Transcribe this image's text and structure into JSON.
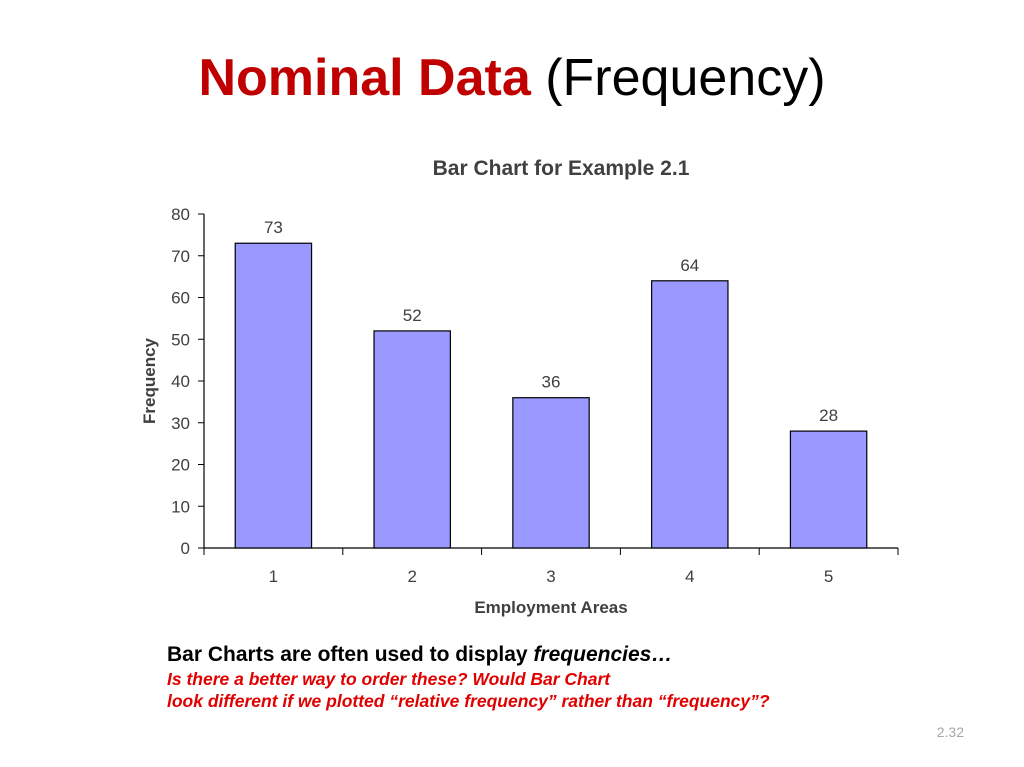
{
  "slide": {
    "title_strong": "Nominal Data",
    "title_rest": " (Frequency)",
    "title_color": "#c00000",
    "caption": {
      "line1_text": "Bar Charts are often used to display ",
      "line1_emphasis": "frequencies…",
      "line2": "Is there a better way to order these? Would Bar Chart",
      "line3": "look different if we plotted “relative frequency” rather than “frequency”?",
      "note_color": "#e00000"
    },
    "slide_number": "2.32"
  },
  "chart_data": {
    "type": "bar",
    "title": "Bar Chart for Example 2.1",
    "xlabel": "Employment Areas",
    "ylabel": "Frequency",
    "categories": [
      "1",
      "2",
      "3",
      "4",
      "5"
    ],
    "values": [
      73,
      52,
      36,
      64,
      28
    ],
    "ylim": [
      0,
      80
    ],
    "yticks": [
      0,
      10,
      20,
      30,
      40,
      50,
      60,
      70,
      80
    ],
    "grid": false,
    "legend": "none",
    "bar_color": "#9999ff",
    "bar_outline_color": "#000000",
    "text_color": "#404040"
  }
}
